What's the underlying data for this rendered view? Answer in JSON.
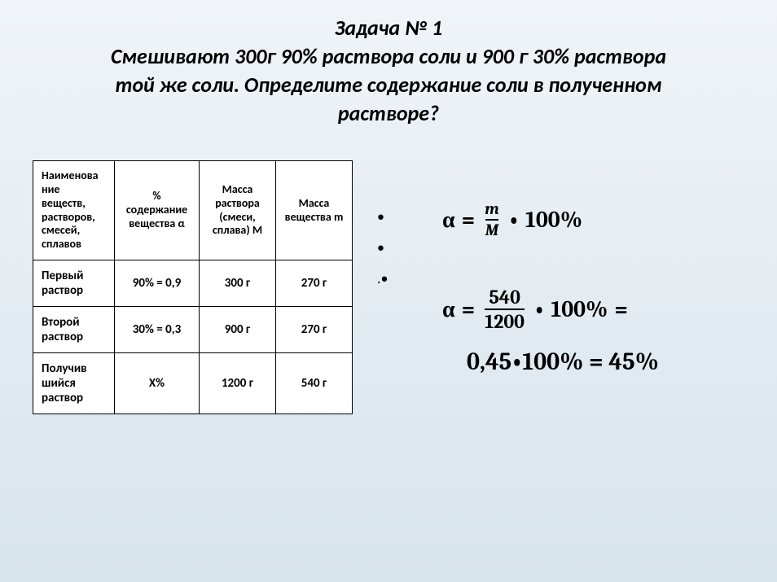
{
  "title": {
    "task_label": "Задача № 1",
    "line1": "Смешивают 300г 90% раствора соли и 900 г 30% раствора",
    "line2": "той же соли. Определите содержание соли в полученном",
    "line3": "растворе?"
  },
  "table": {
    "headers": {
      "c1": "Наименова\nние веществ, растворов, смесей, сплавов",
      "c2": "% содержание вещества α",
      "c3": "Масса раствора (смеси, сплава) M",
      "c4": "Масса вещества m"
    },
    "rows": [
      {
        "name": "Первый раствор",
        "pct": "90% = 0,9",
        "mass_M": "300 г",
        "mass_m": "270 г"
      },
      {
        "name": "Второй раствор",
        "pct": "30% = 0,3",
        "mass_M": "900 г",
        "mass_m": "270 г"
      },
      {
        "name": "Получив\nшийся раствор",
        "pct": "X%",
        "mass_M": "1200 г",
        "mass_m": "540 г"
      }
    ]
  },
  "bullets": {
    "b1": "•",
    "b2": "•",
    "b3": ".•"
  },
  "formulas": {
    "f1": {
      "alpha": "α",
      "eq": "=",
      "num": "m",
      "den": "M",
      "dot": "•",
      "pct": "100%"
    },
    "f2": {
      "alpha": "α",
      "eq": "=",
      "num": "540",
      "den": "1200",
      "dot": "•",
      "pct": "100%",
      "tail": "="
    },
    "result": "0,45•100% = 45%"
  },
  "style": {
    "bg_from": "#f0f4f8",
    "bg_to": "#d8e4ec",
    "border_color": "#000000",
    "text_color": "#000000"
  }
}
